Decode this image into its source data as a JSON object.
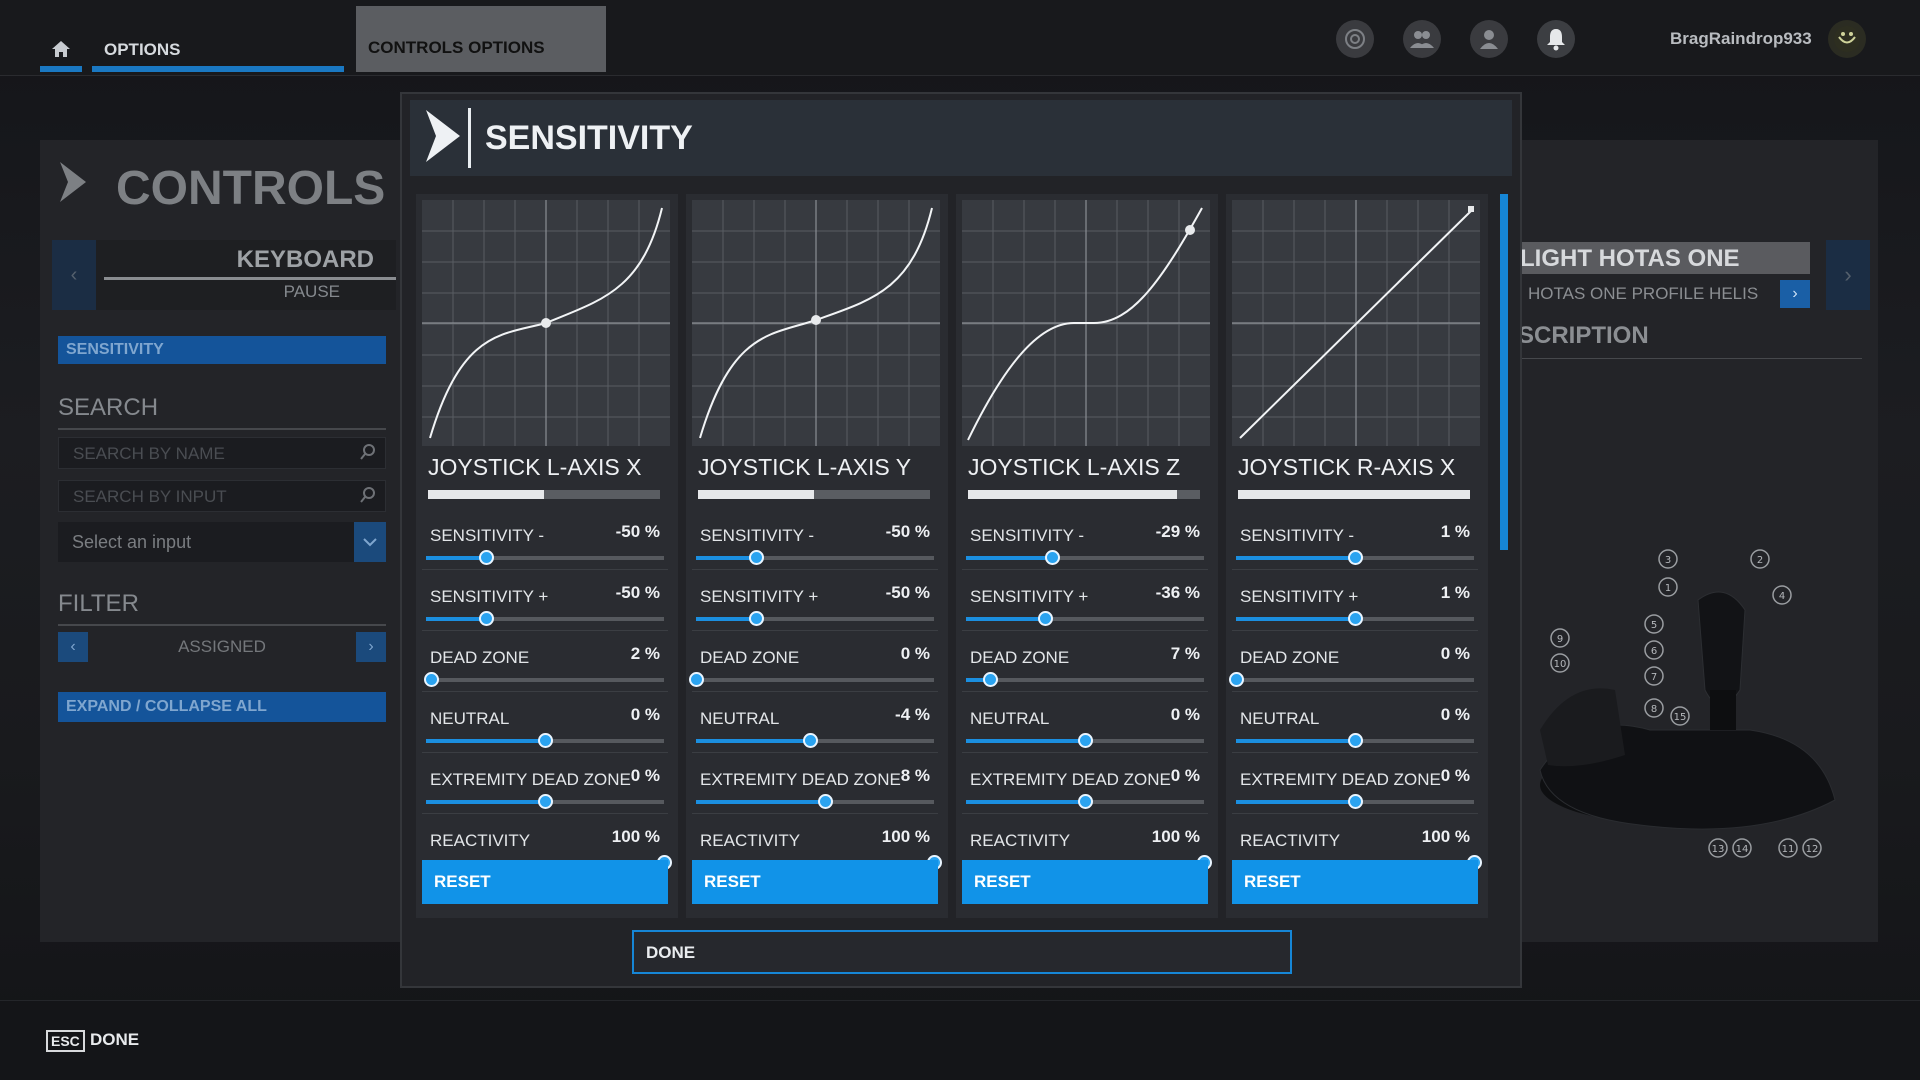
{
  "topbar": {
    "home_icon": "home-icon",
    "options_label": "OPTIONS",
    "controls_options_label": "CONTROLS OPTIONS",
    "icons": [
      "activity-icon",
      "friends-icon",
      "profile-icon",
      "notifications-icon"
    ],
    "username": "BragRaindrop933",
    "accent": "#1a78c2"
  },
  "left_panel": {
    "title": "CONTROLS O",
    "device_label": "KEYBOARD",
    "device_sub": "PAUSE",
    "sensitivity_label": "SENSITIVITY",
    "search_heading": "SEARCH",
    "search_name_placeholder": "SEARCH BY NAME",
    "search_input_placeholder": "SEARCH BY INPUT",
    "select_input": "Select an input",
    "filter_heading": "FILTER",
    "filter_value": "ASSIGNED",
    "expand_label": "EXPAND / COLLAPSE ALL"
  },
  "right_panel": {
    "device_name": "LIGHT HOTAS ONE",
    "profile_name": "HOTAS ONE PROFILE HELIS",
    "description_heading": "SCRIPTION",
    "callouts": [
      "1",
      "2",
      "3",
      "4",
      "5",
      "6",
      "7",
      "8",
      "9",
      "10",
      "11",
      "12",
      "13",
      "14",
      "15"
    ]
  },
  "modal": {
    "title": "SENSITIVITY",
    "done_label": "DONE",
    "cards": [
      {
        "title": "JOYSTICK L-AXIS X",
        "curve": "scurve",
        "axis_bar": 0.5,
        "reset_label": "RESET",
        "rows": [
          {
            "label": "SENSITIVITY -",
            "value": "-50 %",
            "pos": 0.25
          },
          {
            "label": "SENSITIVITY +",
            "value": "-50 %",
            "pos": 0.25
          },
          {
            "label": "DEAD ZONE",
            "value": "2 %",
            "pos": 0.02
          },
          {
            "label": "NEUTRAL",
            "value": "0 %",
            "pos": 0.5
          },
          {
            "label": "EXTREMITY DEAD ZONE",
            "value": "0 %",
            "pos": 0.5
          },
          {
            "label": "REACTIVITY",
            "value": "100 %",
            "pos": 1.0
          }
        ]
      },
      {
        "title": "JOYSTICK L-AXIS Y",
        "curve": "scurve",
        "axis_bar": 0.5,
        "reset_label": "RESET",
        "rows": [
          {
            "label": "SENSITIVITY -",
            "value": "-50 %",
            "pos": 0.25
          },
          {
            "label": "SENSITIVITY +",
            "value": "-50 %",
            "pos": 0.25
          },
          {
            "label": "DEAD ZONE",
            "value": "0 %",
            "pos": 0.0
          },
          {
            "label": "NEUTRAL",
            "value": "-4 %",
            "pos": 0.48
          },
          {
            "label": "EXTREMITY DEAD ZONE",
            "value": "8 %",
            "pos": 0.54
          },
          {
            "label": "REACTIVITY",
            "value": "100 %",
            "pos": 1.0
          }
        ]
      },
      {
        "title": "JOYSTICK L-AXIS Z",
        "curve": "deadzone",
        "axis_bar": 0.9,
        "reset_label": "RESET",
        "rows": [
          {
            "label": "SENSITIVITY -",
            "value": "-29 %",
            "pos": 0.36
          },
          {
            "label": "SENSITIVITY +",
            "value": "-36 %",
            "pos": 0.33
          },
          {
            "label": "DEAD ZONE",
            "value": "7 %",
            "pos": 0.1
          },
          {
            "label": "NEUTRAL",
            "value": "0 %",
            "pos": 0.5
          },
          {
            "label": "EXTREMITY DEAD ZONE",
            "value": "0 %",
            "pos": 0.5
          },
          {
            "label": "REACTIVITY",
            "value": "100 %",
            "pos": 1.0
          }
        ]
      },
      {
        "title": "JOYSTICK R-AXIS X",
        "curve": "linear",
        "axis_bar": 1.0,
        "reset_label": "RESET",
        "rows": [
          {
            "label": "SENSITIVITY -",
            "value": "1 %",
            "pos": 0.5
          },
          {
            "label": "SENSITIVITY +",
            "value": "1 %",
            "pos": 0.5
          },
          {
            "label": "DEAD ZONE",
            "value": "0 %",
            "pos": 0.0
          },
          {
            "label": "NEUTRAL",
            "value": "0 %",
            "pos": 0.5
          },
          {
            "label": "EXTREMITY DEAD ZONE",
            "value": "0 %",
            "pos": 0.5
          },
          {
            "label": "REACTIVITY",
            "value": "100 %",
            "pos": 1.0
          }
        ]
      }
    ]
  },
  "bottom": {
    "esc_key": "ESC",
    "done_label": "DONE"
  }
}
